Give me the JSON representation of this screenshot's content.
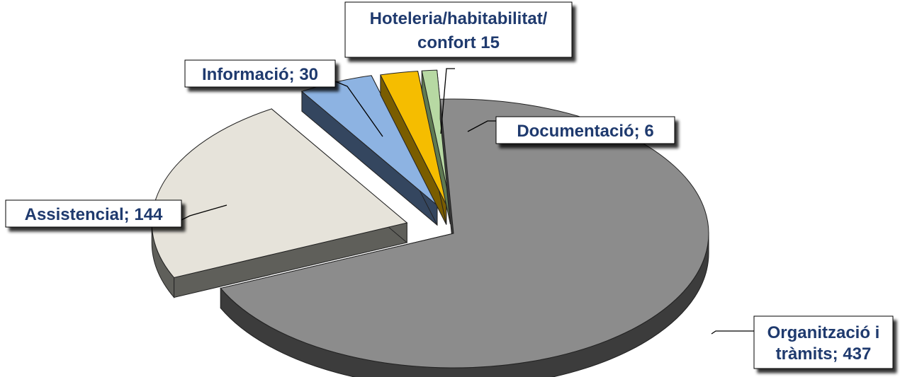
{
  "chart_data": {
    "type": "pie",
    "style": "3d-exploded",
    "title": "",
    "slices": [
      {
        "label": "Organització i tràmits",
        "value": 437,
        "color": "#8c8c8c",
        "label_lines": [
          "Organització i",
          "tràmits; 437"
        ]
      },
      {
        "label": "Assistencial",
        "value": 144,
        "color": "#e6e3da",
        "label_lines": [
          "Assistencial; 144"
        ]
      },
      {
        "label": "Informació",
        "value": 30,
        "color": "#8db3e2",
        "label_lines": [
          "Informació; 30"
        ]
      },
      {
        "label": "Hoteleria/habitabilitat/confort",
        "value": 15,
        "color": "#f5bd00",
        "label_lines": [
          "Hoteleria/habitabilitat/",
          "confort 15"
        ]
      },
      {
        "label": "Documentació",
        "value": 6,
        "color": "#b7d9a3",
        "label_lines": [
          "Documentació; 6"
        ]
      }
    ]
  }
}
